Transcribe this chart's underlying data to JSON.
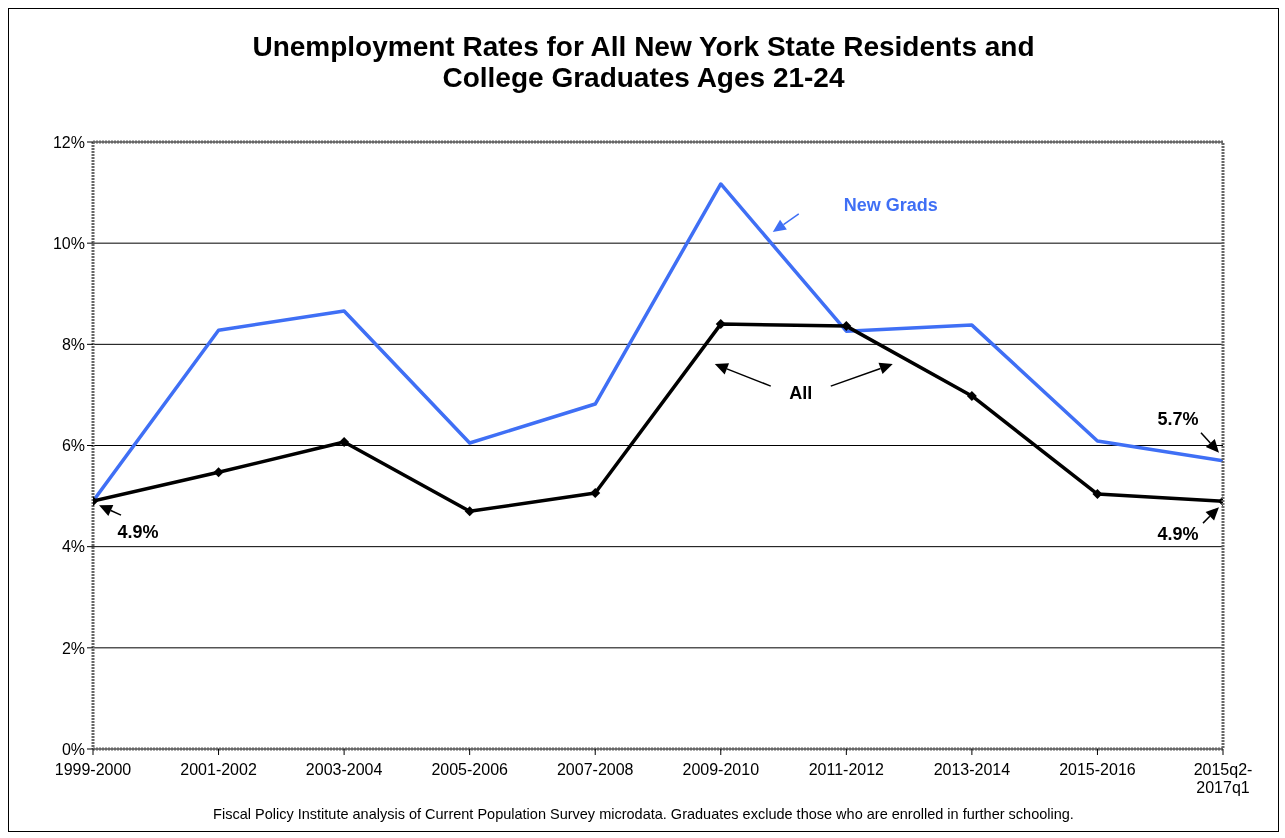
{
  "chart_data": {
    "type": "line",
    "title": "Unemployment Rates for All New York State Residents and College Graduates Ages 21-24",
    "categories": [
      "1999-2000",
      "2001-2002",
      "2003-2004",
      "2005-2006",
      "2007-2008",
      "2009-2010",
      "2011-2012",
      "2013-2014",
      "2015-2016",
      "2015q2-2017q1"
    ],
    "series": [
      {
        "name": "New Grads",
        "color": "#3f6ff5",
        "marker": "none",
        "values": [
          4.9,
          8.28,
          8.66,
          6.05,
          6.82,
          11.17,
          8.26,
          8.38,
          6.09,
          5.7
        ]
      },
      {
        "name": "All",
        "color": "#000000",
        "marker": "diamond",
        "values": [
          4.9,
          5.47,
          6.07,
          4.7,
          5.06,
          8.4,
          8.36,
          6.98,
          5.04,
          4.9
        ]
      }
    ],
    "ylim": [
      0,
      12
    ],
    "yticks": [
      {
        "value": 0,
        "label": "0%"
      },
      {
        "value": 2,
        "label": "2%"
      },
      {
        "value": 4,
        "label": "4%"
      },
      {
        "value": 6,
        "label": "6%"
      },
      {
        "value": 8,
        "label": "8%"
      },
      {
        "value": 10,
        "label": "10%"
      },
      {
        "value": 12,
        "label": "12%"
      }
    ],
    "grid": "y",
    "legend": false,
    "line_style": "solid",
    "annotations": [
      {
        "text": "4.9%",
        "x": "1999-2000",
        "y": 4.9
      },
      {
        "text": "5.7%",
        "x": "2015q2-2017q1",
        "y": 5.7
      },
      {
        "text": "4.9%",
        "x": "2015q2-2017q1",
        "y": 4.9
      },
      "Fiscal Policy Institute analysis of Current Population Survey microdata. Graduates exclude those who are enrolled in further schooling."
    ]
  }
}
